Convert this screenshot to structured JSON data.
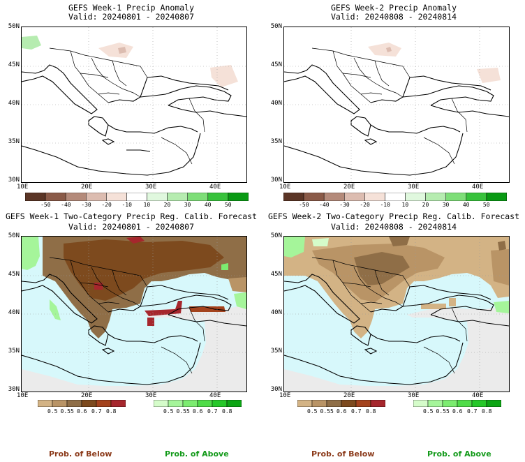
{
  "panels": [
    {
      "title": "GEFS Week-1 Precip Anomaly",
      "valid": "Valid: 20240801 - 20240807"
    },
    {
      "title": "GEFS Week-2 Precip Anomaly",
      "valid": "Valid: 20240808 - 20240814"
    },
    {
      "title": "GEFS Week-1 Two-Category Precip Reg. Calib. Forecast",
      "valid": "Valid: 20240801 - 20240807"
    },
    {
      "title": "GEFS Week-2 Two-Category Precip Reg. Calib. Forecast",
      "valid": "Valid: 20240808 - 20240814"
    }
  ],
  "lat_labels": [
    "50N",
    "45N",
    "40N",
    "35N",
    "30N"
  ],
  "lon_labels": [
    "10E",
    "20E",
    "30E",
    "40E"
  ],
  "anomaly_scale": {
    "labels": [
      "-50",
      "-40",
      "-30",
      "-20",
      "-10",
      "10",
      "20",
      "30",
      "40",
      "50"
    ],
    "colors": [
      "#5b3526",
      "#8a5a48",
      "#b48a7a",
      "#dcbcb0",
      "#f5e1d8",
      "#ffffff",
      "#e0f8de",
      "#b6ecb0",
      "#7ede78",
      "#38c23c",
      "#0a9a14"
    ]
  },
  "below_scale": {
    "labels": [
      "0.5",
      "0.55",
      "0.6",
      "0.7",
      "0.8"
    ],
    "colors": [
      "#d3b385",
      "#b99466",
      "#8f6e47",
      "#7d4a1e",
      "#a4431d",
      "#a6272d"
    ]
  },
  "above_scale": {
    "labels": [
      "0.5",
      "0.55",
      "0.6",
      "0.7",
      "0.8"
    ],
    "colors": [
      "#d5fcca",
      "#a5f59a",
      "#7cec70",
      "#4fdc48",
      "#26c829",
      "#0ca614"
    ]
  },
  "footer": {
    "below": "Prob. of Below",
    "above": "Prob. of Above",
    "below_color": "#8b3a1a",
    "above_color": "#139a1a"
  },
  "colors": {
    "sea": "#d7f8fb",
    "nodata": "#ebebeb",
    "land_below": "#c59f6c",
    "land_strong": "#7d4a1e"
  }
}
